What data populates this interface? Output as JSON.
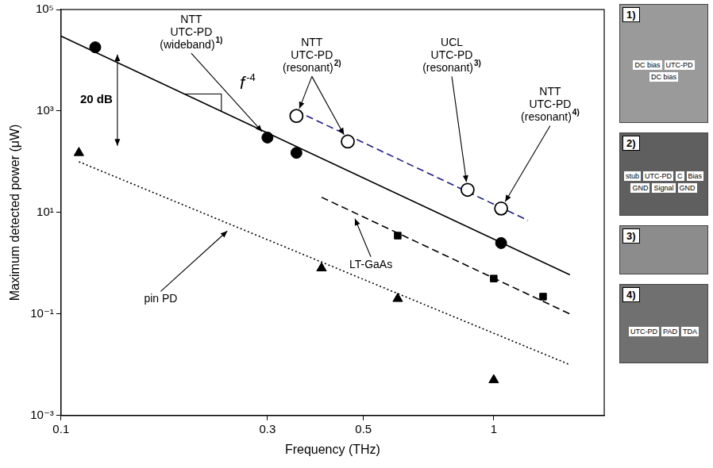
{
  "chart_data": {
    "type": "scatter",
    "x_label": "Frequency (THz)",
    "y_label": "Maximum detected power (μW)",
    "log": true,
    "grid": false,
    "xlim": [
      0.1,
      1.8
    ],
    "xticks": [
      0.1,
      0.3,
      0.5,
      1
    ],
    "ylim": [
      0.001,
      100000
    ],
    "yticks": [
      {
        "value": 0.001,
        "label": "10⁻³"
      },
      {
        "value": 0.1,
        "label": "10⁻¹"
      },
      {
        "value": 10,
        "label": "10¹"
      },
      {
        "value": 1000,
        "label": "10³"
      },
      {
        "value": 100000,
        "label": "10⁵"
      }
    ],
    "series": [
      {
        "marker": "circle",
        "color": "#000000",
        "x": [
          0.12,
          0.3,
          0.35,
          1.04
        ],
        "values": [
          18000,
          300,
          150,
          2.5
        ]
      },
      {
        "marker": "open_circle",
        "color": "#000000",
        "x": [
          0.35,
          0.46,
          0.87,
          1.04
        ],
        "values": [
          800,
          250,
          28,
          12
        ]
      },
      {
        "marker": "square",
        "color": "#000000",
        "x": [
          0.6,
          1.0,
          1.3
        ],
        "values": [
          3.5,
          0.5,
          0.22
        ]
      },
      {
        "marker": "triangle",
        "color": "#000000",
        "x": [
          0.11,
          0.4,
          0.6,
          1.0
        ],
        "values": [
          150,
          0.8,
          0.2,
          0.005
        ]
      },
      {
        "type": "line",
        "line_style": "solid",
        "color": "#000000",
        "x": [
          0.1,
          1.5
        ],
        "values": [
          30000,
          0.59
        ]
      },
      {
        "type": "line",
        "line_style": "dashed",
        "color": "#1c1c8c",
        "x": [
          0.35,
          1.2
        ],
        "values": [
          1000,
          7
        ]
      },
      {
        "type": "line",
        "line_style": "dashed",
        "color": "#000000",
        "x": [
          0.4,
          1.5
        ],
        "values": [
          20,
          0.1
        ]
      },
      {
        "type": "line",
        "line_style": "dotted",
        "color": "#000000",
        "x": [
          0.11,
          1.5
        ],
        "values": [
          100,
          0.01
        ]
      }
    ],
    "annotations": [
      {
        "lines": [
          "NTT",
          "UTC-PD",
          "(wideband)"
        ],
        "superscript": "1)",
        "points_to": [
          [
            0.3,
            300
          ]
        ]
      },
      {
        "lines": [
          "NTT",
          "UTC-PD",
          "(resonant)"
        ],
        "superscript": "2)",
        "points_to": [
          [
            0.35,
            800
          ],
          [
            0.46,
            250
          ]
        ]
      },
      {
        "lines": [
          "UCL",
          "UTC-PD",
          "(resonant)"
        ],
        "superscript": "3)",
        "points_to": [
          [
            0.87,
            28
          ]
        ]
      },
      {
        "lines": [
          "NTT",
          "UTC-PD",
          "(resonant)"
        ],
        "superscript": "4)",
        "points_to": [
          [
            1.04,
            12
          ]
        ]
      },
      {
        "lines": [
          "pin PD"
        ],
        "points_to": [
          [
            0.25,
            5.5
          ]
        ]
      },
      {
        "lines": [
          "LT-GaAs"
        ],
        "points_to": [
          [
            0.47,
            10.5
          ]
        ]
      },
      {
        "lines": [
          "20 dB"
        ],
        "points_to": [
          [
            0.135,
            18000
          ],
          [
            0.135,
            150
          ]
        ]
      },
      {
        "lines": [
          "f"
        ],
        "superscript": "-4"
      }
    ]
  },
  "photos": [
    {
      "label": "1)",
      "texts": [
        "DC bias",
        "UTC-PD",
        "DC bias"
      ]
    },
    {
      "label": "2)",
      "texts": [
        "stub",
        "UTC-PD",
        "C",
        "Bias",
        "GND",
        "Signal",
        "GND"
      ]
    },
    {
      "label": "3)",
      "texts": []
    },
    {
      "label": "4)",
      "texts": [
        "UTC-PD",
        "PAD",
        "TDA"
      ]
    }
  ]
}
